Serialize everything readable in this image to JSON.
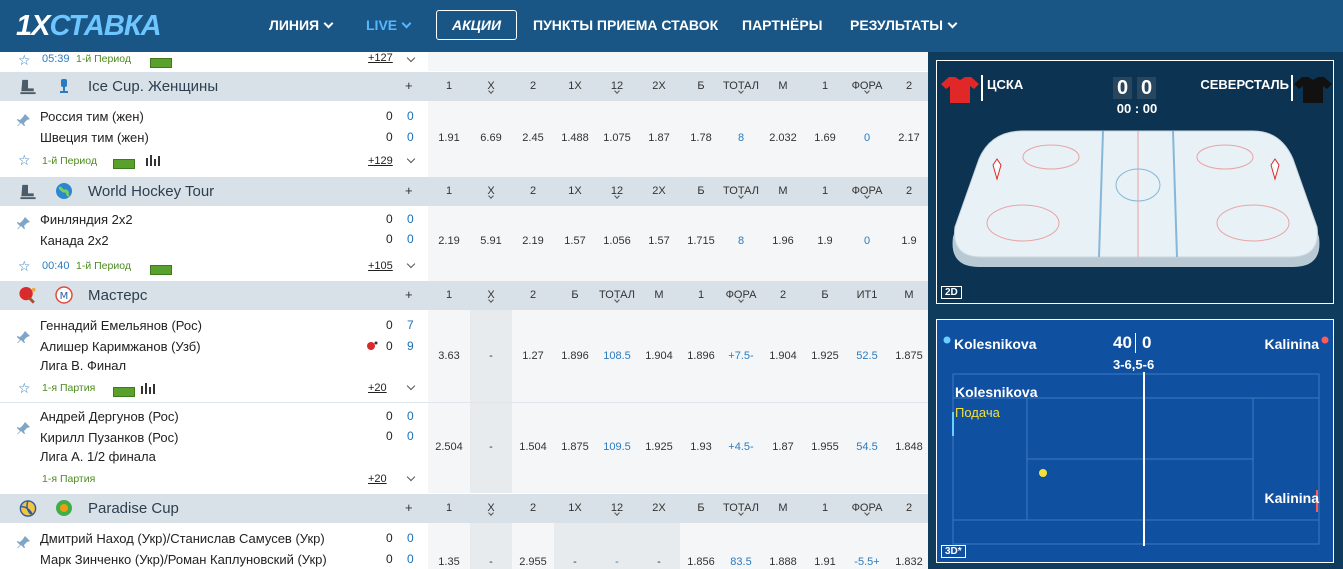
{
  "header": {
    "logo_a": "1X",
    "logo_b": "СТАВКА",
    "nav": [
      "ЛИНИЯ",
      "LIVE",
      "ПУНКТЫ ПРИЕМА СТАВОК",
      "ПАРТНЁРЫ",
      "РЕЗУЛЬТАТЫ"
    ],
    "promo": "АКЦИИ"
  },
  "top_row": {
    "time": "05:39",
    "period": "1-й Период",
    "more": "+127"
  },
  "groups": [
    {
      "name": "Ice Cup. Женщины",
      "plus": "+",
      "headers": [
        "1",
        "Х",
        "2",
        "1Х",
        "12",
        "2Х",
        "Б",
        "ТОТАЛ",
        "М",
        "1",
        "ФОРА",
        "2"
      ]
    },
    {
      "name": "World Hockey Tour",
      "plus": "+",
      "headers": [
        "1",
        "Х",
        "2",
        "1Х",
        "12",
        "2Х",
        "Б",
        "ТОТАЛ",
        "М",
        "1",
        "ФОРА",
        "2"
      ]
    },
    {
      "name": "Мастерс",
      "plus": "+",
      "headers": [
        "1",
        "Х",
        "2",
        "Б",
        "ТОТАЛ",
        "М",
        "1",
        "ФОРА",
        "2",
        "Б",
        "ИТ1",
        "М"
      ]
    },
    {
      "name": "Paradise Cup",
      "plus": "+",
      "headers": [
        "1",
        "Х",
        "2",
        "1Х",
        "12",
        "2Х",
        "Б",
        "ТОТАЛ",
        "М",
        "1",
        "ФОРА",
        "2"
      ]
    }
  ],
  "events": [
    {
      "t1": "Россия тим (жен)",
      "t2": "Швеция тим (жен)",
      "s1a": "0",
      "s1b": "0",
      "s2a": "0",
      "s2b": "0",
      "info": "1-й Период",
      "more": "+129",
      "odds": [
        "1.91",
        "6.69",
        "2.45",
        "1.488",
        "1.075",
        "1.87",
        "1.78",
        "8",
        "2.032",
        "1.69",
        "0",
        "2.17"
      ]
    },
    {
      "t1": "Финляндия 2х2",
      "t2": "Канада 2х2",
      "s1a": "0",
      "s1b": "0",
      "s2a": "0",
      "s2b": "0",
      "time": "00:40",
      "info": "1-й Период",
      "more": "+105",
      "odds": [
        "2.19",
        "5.91",
        "2.19",
        "1.57",
        "1.056",
        "1.57",
        "1.715",
        "8",
        "1.96",
        "1.9",
        "0",
        "1.9"
      ]
    },
    {
      "t1": "Геннадий Емельянов (Рос)",
      "t2": "Алишер Каримжанов (Узб)",
      "t3": "Лига В. Финал",
      "s1a": "0",
      "s1b": "7",
      "s2a": "0",
      "s2b": "9",
      "info": "1-я Партия",
      "more": "+20",
      "odds": [
        "3.63",
        "-",
        "1.27",
        "1.896",
        "108.5",
        "1.904",
        "1.896",
        "+7.5-",
        "1.904",
        "1.925",
        "52.5",
        "1.875"
      ]
    },
    {
      "t1": "Андрей Дергунов (Рос)",
      "t2": "Кирилл Пузанков (Рос)",
      "t3": "Лига А. 1/2 финала",
      "s1a": "0",
      "s1b": "0",
      "s2a": "0",
      "s2b": "0",
      "info": "1-я Партия",
      "more": "+20",
      "odds": [
        "2.504",
        "-",
        "1.504",
        "1.875",
        "109.5",
        "1.925",
        "1.93",
        "+4.5-",
        "1.87",
        "1.955",
        "54.5",
        "1.848"
      ]
    },
    {
      "t1": "Дмитрий Наход (Укр)/Станислав Самусев (Укр)",
      "t2": "Марк Зинченко (Укр)/Роман Каплуновский (Укр)",
      "s1a": "0",
      "s1b": "0",
      "s2a": "0",
      "s2b": "0",
      "odds": [
        "1.35",
        "-",
        "2.955",
        "-",
        "-",
        "-",
        "1.856",
        "83.5",
        "1.888",
        "1.91",
        "-5.5+",
        "1.832"
      ]
    }
  ],
  "hockey_widget": {
    "home": "ЦСКА",
    "away": "СЕВЕРСТАЛЬ",
    "home_score": "0",
    "away_score": "0",
    "clock": "00 : 00",
    "mode": "2D"
  },
  "tennis_widget": {
    "p1": "Kolesnikova",
    "p2": "Kalinina",
    "score_a": "40",
    "score_b": "0",
    "sets": "3-6,5-6",
    "server": "Kolesnikova",
    "serve_label": "Подача",
    "court_p2": "Kalinina",
    "mode": "3D*"
  },
  "colors": {
    "header": "#1a5685",
    "accent": "#2b7bc0",
    "group_bg": "#d8e1e7",
    "widget_bg": "#0c3352"
  }
}
